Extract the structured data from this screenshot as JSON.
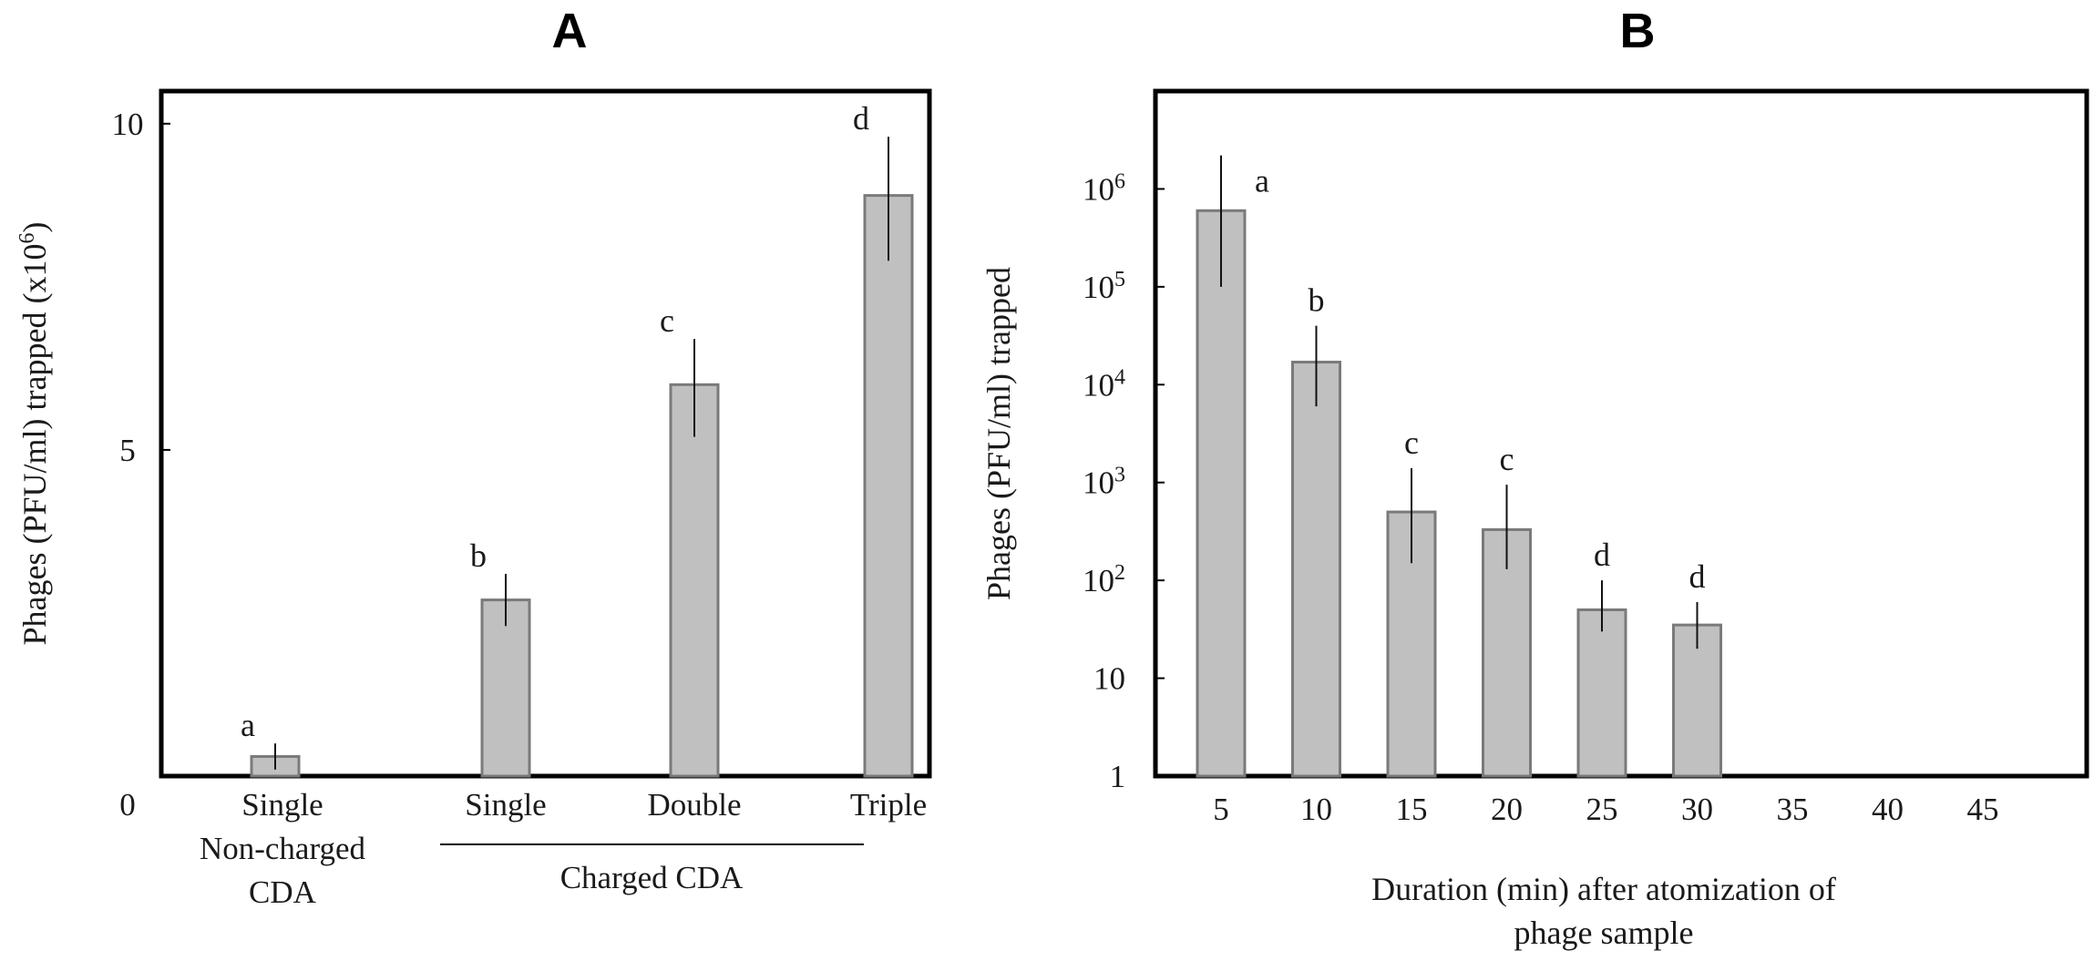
{
  "chart_data": [
    {
      "type": "bar",
      "title": "A",
      "ylabel_main": "Phages (PFU/ml) trapped (x10",
      "ylabel_exp": "6",
      "ylabel_close": ")",
      "ylim": [
        0,
        10.5
      ],
      "yticks": [
        {
          "value": 0,
          "label": "0"
        },
        {
          "value": 5,
          "label": "5"
        },
        {
          "value": 10,
          "label": "10"
        }
      ],
      "categories": [
        {
          "lines": [
            "Single",
            "Non-charged",
            "CDA"
          ],
          "value": 0.3,
          "err_low": 0.1,
          "err_high": 0.5,
          "sig": "a"
        },
        {
          "lines": [
            "Single"
          ],
          "value": 2.7,
          "err_low": 2.3,
          "err_high": 3.1,
          "sig": "b"
        },
        {
          "lines": [
            "Double"
          ],
          "value": 6.0,
          "err_low": 5.2,
          "err_high": 6.7,
          "sig": "c"
        },
        {
          "lines": [
            "Triple"
          ],
          "value": 8.9,
          "err_low": 7.9,
          "err_high": 9.8,
          "sig": "d"
        }
      ],
      "group_label": "Charged CDA",
      "grid": false
    },
    {
      "type": "bar",
      "title": "B",
      "ylabel": "Phages (PFU/ml) trapped",
      "xlabel_lines": [
        "Duration (min) after atomization of",
        "phage sample"
      ],
      "yscale": "log",
      "ylim": [
        1,
        10000000
      ],
      "yticks": [
        {
          "value": 1,
          "base": "1",
          "exp": ""
        },
        {
          "value": 10,
          "base": "10",
          "exp": ""
        },
        {
          "value": 100,
          "base": "10",
          "exp": "2"
        },
        {
          "value": 1000,
          "base": "10",
          "exp": "3"
        },
        {
          "value": 10000,
          "base": "10",
          "exp": "4"
        },
        {
          "value": 100000,
          "base": "10",
          "exp": "5"
        },
        {
          "value": 1000000,
          "base": "10",
          "exp": "6"
        }
      ],
      "categories": [
        "5",
        "10",
        "15",
        "20",
        "25",
        "30",
        "35",
        "40",
        "45"
      ],
      "values": [
        600000,
        17000,
        500,
        330,
        50,
        35,
        null,
        null,
        null
      ],
      "err_low": [
        100000,
        6000,
        150,
        130,
        30,
        20,
        null,
        null,
        null
      ],
      "err_high": [
        2200000,
        40000,
        1400,
        950,
        100,
        60,
        null,
        null,
        null
      ],
      "sig": [
        "a",
        "b",
        "c",
        "c",
        "d",
        "d",
        "",
        "",
        ""
      ],
      "grid": false
    }
  ]
}
